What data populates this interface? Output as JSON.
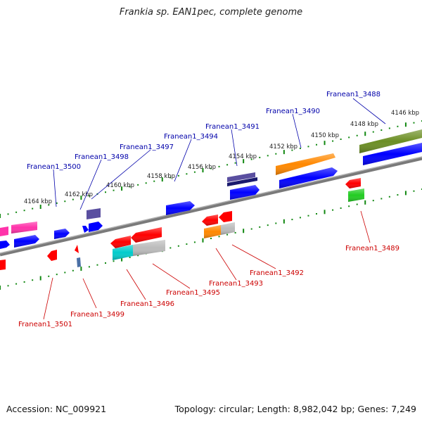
{
  "title": "Frankia sp. EAN1pec, complete genome",
  "accession": "Accession: NC_009921",
  "topology": "Topology: circular; Length: 8,982,042 bp; Genes: 7,249",
  "scale_labels": [
    "4146 kbp",
    "4148 kbp",
    "4150 kbp",
    "4152 kbp",
    "4154 kbp",
    "4156 kbp",
    "4158 kbp",
    "4160 kbp",
    "4162 kbp",
    "4164 kbp"
  ],
  "genes_forward": [
    "Franean1_3488",
    "Franean1_3490",
    "Franean1_3491",
    "Franean1_3494",
    "Franean1_3497",
    "Franean1_3498",
    "Franean1_3500"
  ],
  "genes_reverse": [
    "Franean1_3489",
    "Franean1_3492",
    "Franean1_3493",
    "Franean1_3495",
    "Franean1_3496",
    "Franean1_3499",
    "Franean1_3501"
  ],
  "colors": {
    "forward_label": "#0000aa",
    "reverse_label": "#cc0000",
    "axis": "#888888",
    "tick": "#118811",
    "blue": "#0000ff",
    "red": "#ff0000",
    "magenta": "#ff33aa",
    "orange": "#ff8800",
    "olive": "#6b8e23",
    "slate": "#5a4fa0",
    "navy": "#1a1a6e",
    "cyan": "#00cccc",
    "grey": "#bbbbbb",
    "green": "#22cc22"
  }
}
